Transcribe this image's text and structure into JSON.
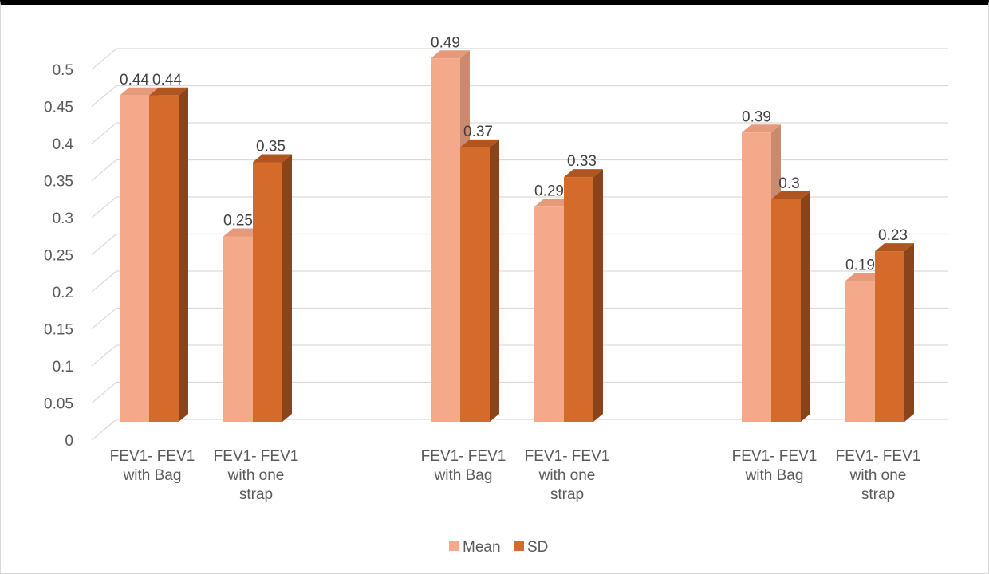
{
  "chart_data": {
    "type": "bar",
    "categories": [
      [
        "FEV1- FEV1",
        "with Bag"
      ],
      [
        "FEV1- FEV1",
        "with one",
        "strap"
      ],
      [
        "FEV1- FEV1",
        "with Bag"
      ],
      [
        "FEV1- FEV1",
        "with one",
        "strap"
      ],
      [
        "FEV1- FEV1",
        "with Bag"
      ],
      [
        "FEV1- FEV1",
        "with one",
        "strap"
      ]
    ],
    "series": [
      {
        "name": "Mean",
        "values": [
          0.44,
          0.25,
          0.49,
          0.29,
          0.39,
          0.19
        ],
        "labels": [
          "0.44",
          "0.25",
          "0.49",
          "0.29",
          "0.39",
          "0.19"
        ],
        "color": "#f4a98a",
        "side": "#c98a6f",
        "top": "#e59a7c"
      },
      {
        "name": "SD",
        "values": [
          0.44,
          0.35,
          0.37,
          0.33,
          0.3,
          0.23
        ],
        "labels": [
          "0.44",
          "0.35",
          "0.37",
          "0.33",
          "0.3",
          "0.23"
        ],
        "color": "#d56b2a",
        "side": "#8a4419",
        "top": "#b05520"
      }
    ],
    "yticks": [
      "0",
      "0.05",
      "0.1",
      "0.15",
      "0.2",
      "0.25",
      "0.3",
      "0.35",
      "0.4",
      "0.45",
      "0.5"
    ],
    "ylim": [
      0,
      0.5
    ],
    "grid": true,
    "legend_position": "bottom",
    "style": "3d-column"
  }
}
